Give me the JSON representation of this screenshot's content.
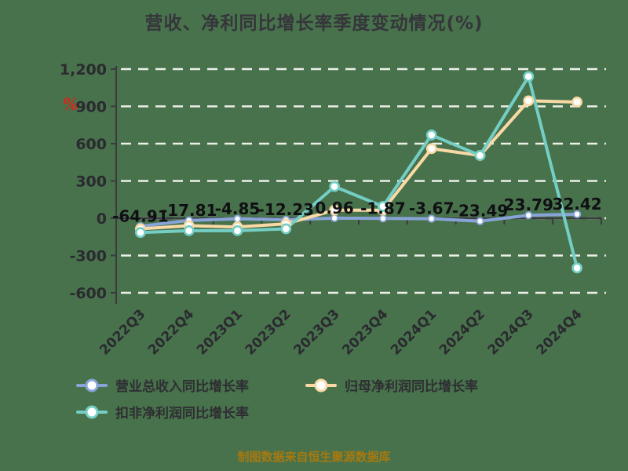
{
  "title": "营收、净利同比增长率季度变动情况(%)",
  "y_unit_label": "%",
  "footer_note": "制图数据来自恒生聚源数据库",
  "chart_data": {
    "type": "line",
    "title": "营收、净利同比增长率季度变动情况(%)",
    "categories": [
      "2022Q3",
      "2022Q4",
      "2023Q1",
      "2023Q2",
      "2023Q3",
      "2023Q4",
      "2024Q1",
      "2024Q2",
      "2024Q3",
      "2024Q4"
    ],
    "series": [
      {
        "name": "营业总收入同比增长率",
        "color": "#87A3D7",
        "values": [
          -64.91,
          -17.81,
          -4.85,
          -12.23,
          0.96,
          -1.87,
          -3.67,
          -23.49,
          23.79,
          32.42
        ],
        "data_labels": [
          "-64.91",
          "-17.81",
          "-4.85",
          "-12.23",
          "0.96",
          "-1.87",
          "-3.67",
          "-23.49",
          "23.79",
          "32.42"
        ]
      },
      {
        "name": "归母净利润同比增长率",
        "color": "#F9D9A6",
        "values": [
          -85,
          -60,
          -70,
          -45,
          65,
          65,
          560,
          505,
          945,
          935
        ],
        "data_labels": null
      },
      {
        "name": "扣非净利润同比增长率",
        "color": "#74CEC6",
        "values": [
          -115,
          -100,
          -100,
          -85,
          255,
          95,
          670,
          505,
          1140,
          -400
        ],
        "data_labels": null
      }
    ],
    "ylim": [
      -600,
      1200
    ],
    "y_ticks": [
      1200,
      900,
      600,
      300,
      0,
      -300,
      -600
    ],
    "y_tick_labels": [
      "1,200",
      "900",
      "600",
      "300",
      "0",
      "-300",
      "-600"
    ],
    "grid": true,
    "legend_position": "bottom",
    "x_label_rotation": 45
  },
  "legend": {
    "items": [
      {
        "label": "营业总收入同比增长率"
      },
      {
        "label": "归母净利润同比增长率"
      },
      {
        "label": "扣非净利润同比增长率"
      }
    ]
  },
  "colors": {
    "background": "#48724B",
    "title": "#35353B",
    "axis": "#3A3A40",
    "grid": "#EDEFEA",
    "tick_text": "#2A2A30",
    "data_label": "#101014",
    "unit": "#D3281C",
    "footer": "#A8790F",
    "legend_text": "#2E2E33"
  }
}
